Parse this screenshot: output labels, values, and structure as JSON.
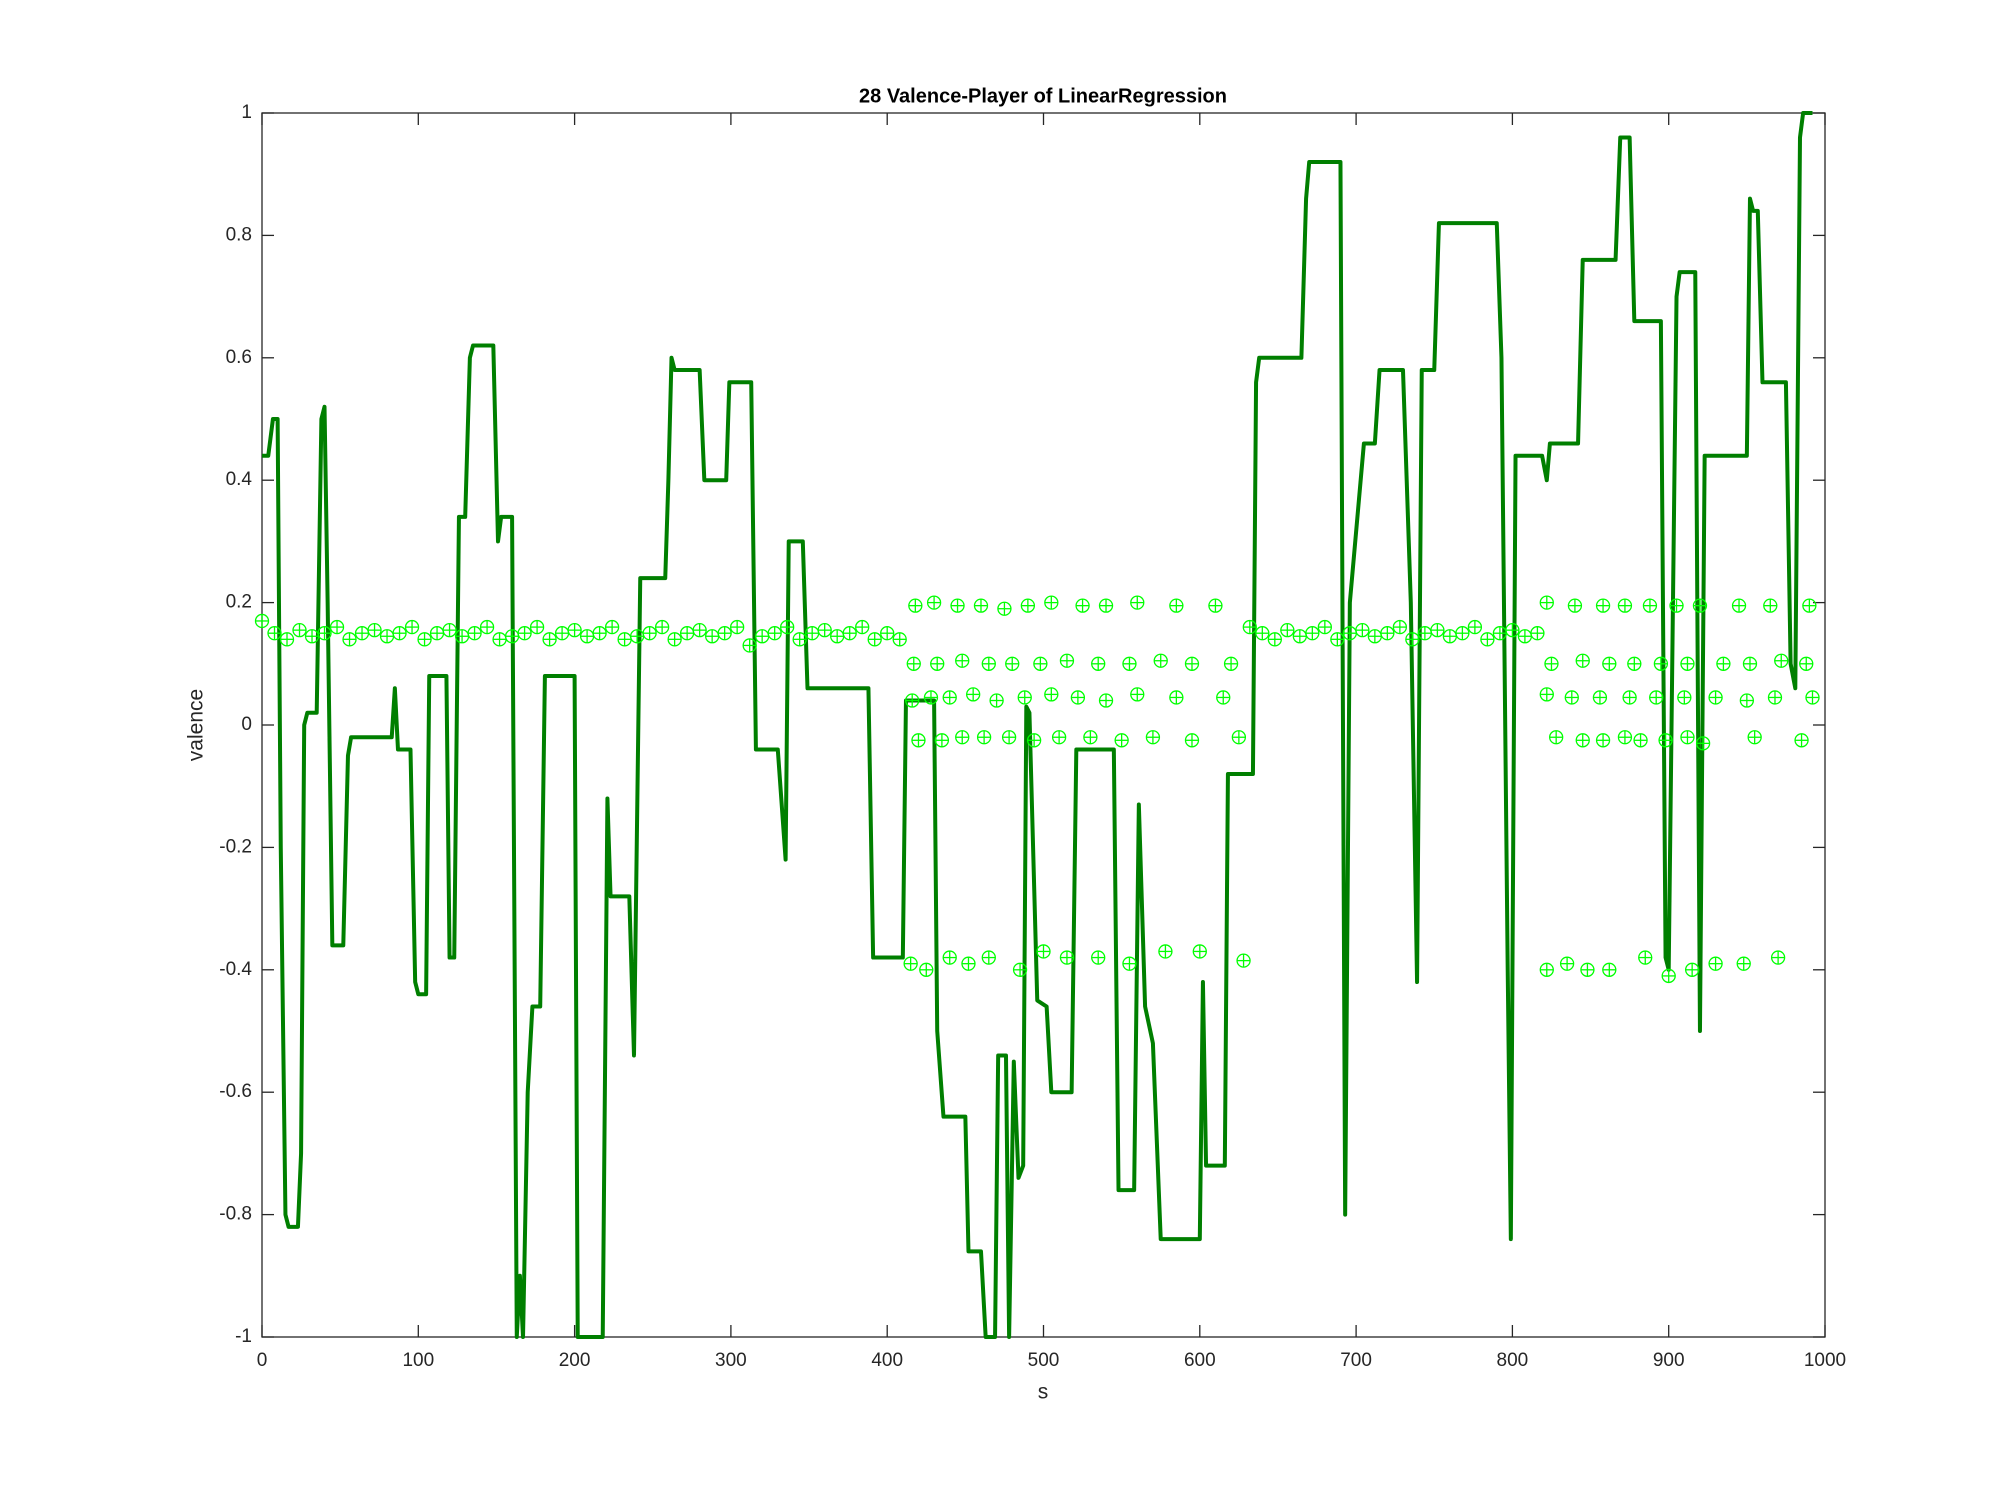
{
  "chart_data": {
    "type": "line",
    "title": "28 Valence-Player of LinearRegression",
    "xlabel": "s",
    "ylabel": "valence",
    "xlim": [
      0,
      1000
    ],
    "ylim": [
      -1,
      1
    ],
    "xticks": [
      0,
      100,
      200,
      300,
      400,
      500,
      600,
      700,
      800,
      900,
      1000
    ],
    "yticks": [
      -1,
      -0.8,
      -0.6,
      -0.4,
      -0.2,
      0,
      0.2,
      0.4,
      0.6,
      0.8,
      1
    ],
    "series": [
      {
        "type": "line",
        "color": "#007f00",
        "x": [
          0,
          4,
          7,
          10,
          12,
          15,
          17,
          23,
          25,
          27,
          29,
          35,
          38,
          40,
          42,
          45,
          52,
          55,
          57,
          83,
          85,
          87,
          95,
          98,
          100,
          105,
          107,
          118,
          120,
          123,
          126,
          130,
          133,
          135,
          148,
          151,
          153,
          160,
          163,
          165,
          167,
          170,
          173,
          178,
          181,
          200,
          202,
          218,
          221,
          223,
          235,
          238,
          242,
          258,
          260,
          262,
          264,
          280,
          283,
          297,
          299,
          313,
          316,
          330,
          335,
          337,
          346,
          349,
          388,
          391,
          410,
          412,
          430,
          432,
          436,
          450,
          452,
          460,
          463,
          469,
          471,
          476,
          478,
          481,
          484,
          487,
          489,
          491,
          496,
          502,
          505,
          518,
          521,
          545,
          548,
          558,
          561,
          565,
          570,
          575,
          600,
          602,
          604,
          616,
          618,
          634,
          636,
          638,
          665,
          668,
          670,
          690,
          693,
          696,
          705,
          712,
          715,
          730,
          735,
          739,
          742,
          750,
          753,
          790,
          793,
          797,
          799,
          802,
          819,
          822,
          824,
          842,
          845,
          866,
          869,
          875,
          878,
          895,
          898,
          900,
          905,
          907,
          917,
          920,
          923,
          950,
          952,
          954,
          957,
          960,
          975,
          978,
          981,
          984,
          986,
          992
        ],
        "values": [
          0.44,
          0.44,
          0.5,
          0.5,
          -0.2,
          -0.8,
          -0.82,
          -0.82,
          -0.7,
          0,
          0.02,
          0.02,
          0.5,
          0.52,
          0.2,
          -0.36,
          -0.36,
          -0.05,
          -0.02,
          -0.02,
          0.06,
          -0.04,
          -0.04,
          -0.42,
          -0.44,
          -0.44,
          0.08,
          0.08,
          -0.38,
          -0.38,
          0.34,
          0.34,
          0.6,
          0.62,
          0.62,
          0.3,
          0.34,
          0.34,
          -1,
          -0.9,
          -1,
          -0.6,
          -0.46,
          -0.46,
          0.08,
          0.08,
          -1,
          -1,
          -0.12,
          -0.28,
          -0.28,
          -0.54,
          0.24,
          0.24,
          0.4,
          0.6,
          0.58,
          0.58,
          0.4,
          0.4,
          0.56,
          0.56,
          -0.04,
          -0.04,
          -0.22,
          0.3,
          0.3,
          0.06,
          0.06,
          -0.38,
          -0.38,
          0.04,
          0.04,
          -0.5,
          -0.64,
          -0.64,
          -0.86,
          -0.86,
          -1,
          -1,
          -0.54,
          -0.54,
          -1,
          -0.55,
          -0.74,
          -0.72,
          0.03,
          0.02,
          -0.45,
          -0.46,
          -0.6,
          -0.6,
          -0.04,
          -0.04,
          -0.76,
          -0.76,
          -0.13,
          -0.46,
          -0.52,
          -0.84,
          -0.84,
          -0.42,
          -0.72,
          -0.72,
          -0.08,
          -0.08,
          0.56,
          0.6,
          0.6,
          0.86,
          0.92,
          0.92,
          -0.8,
          0.2,
          0.46,
          0.46,
          0.58,
          0.58,
          0.2,
          -0.42,
          0.58,
          0.58,
          0.82,
          0.82,
          0.6,
          -0.4,
          -0.84,
          0.44,
          0.44,
          0.4,
          0.46,
          0.46,
          0.76,
          0.76,
          0.96,
          0.96,
          0.66,
          0.66,
          -0.38,
          -0.4,
          0.7,
          0.74,
          0.74,
          -0.5,
          0.44,
          0.44,
          0.86,
          0.84,
          0.84,
          0.56,
          0.56,
          0.1,
          0.06,
          0.96,
          1,
          1
        ]
      },
      {
        "type": "scatter",
        "color": "#00ff00",
        "x": [
          0,
          8,
          16,
          24,
          32,
          40,
          48,
          56,
          64,
          72,
          80,
          88,
          96,
          104,
          112,
          120,
          128,
          136,
          144,
          152,
          160,
          168,
          176,
          184,
          192,
          200,
          208,
          216,
          224,
          232,
          240,
          248,
          256,
          264,
          272,
          280,
          288,
          296,
          304,
          312,
          320,
          328,
          336,
          344,
          352,
          360,
          368,
          376,
          384,
          392,
          400,
          408,
          418,
          430,
          445,
          460,
          475,
          490,
          505,
          525,
          540,
          560,
          585,
          610,
          417,
          432,
          448,
          465,
          480,
          498,
          515,
          535,
          555,
          575,
          595,
          620,
          416,
          428,
          440,
          455,
          470,
          488,
          505,
          522,
          540,
          560,
          585,
          615,
          420,
          435,
          448,
          462,
          478,
          494,
          510,
          530,
          550,
          570,
          595,
          625,
          415,
          425,
          440,
          452,
          465,
          485,
          500,
          515,
          535,
          555,
          578,
          600,
          628,
          632,
          640,
          648,
          656,
          664,
          672,
          680,
          688,
          696,
          704,
          712,
          720,
          728,
          736,
          744,
          752,
          760,
          768,
          776,
          784,
          792,
          800,
          808,
          816,
          822,
          840,
          858,
          872,
          888,
          905,
          920,
          945,
          965,
          990,
          825,
          845,
          862,
          878,
          895,
          912,
          935,
          952,
          972,
          988,
          822,
          838,
          856,
          875,
          892,
          910,
          930,
          950,
          968,
          992,
          828,
          845,
          858,
          872,
          882,
          898,
          912,
          922,
          955,
          985,
          822,
          835,
          848,
          862,
          885,
          900,
          915,
          930,
          948,
          970
        ],
        "values": [
          0.17,
          0.15,
          0.14,
          0.155,
          0.145,
          0.15,
          0.16,
          0.14,
          0.15,
          0.155,
          0.145,
          0.15,
          0.16,
          0.14,
          0.15,
          0.155,
          0.145,
          0.15,
          0.16,
          0.14,
          0.145,
          0.15,
          0.16,
          0.14,
          0.15,
          0.155,
          0.145,
          0.15,
          0.16,
          0.14,
          0.145,
          0.15,
          0.16,
          0.14,
          0.15,
          0.155,
          0.145,
          0.15,
          0.16,
          0.13,
          0.145,
          0.15,
          0.16,
          0.14,
          0.15,
          0.155,
          0.145,
          0.15,
          0.16,
          0.14,
          0.15,
          0.14,
          0.195,
          0.2,
          0.195,
          0.195,
          0.19,
          0.195,
          0.2,
          0.195,
          0.195,
          0.2,
          0.195,
          0.195,
          0.1,
          0.1,
          0.105,
          0.1,
          0.1,
          0.1,
          0.105,
          0.1,
          0.1,
          0.105,
          0.1,
          0.1,
          0.04,
          0.045,
          0.045,
          0.05,
          0.04,
          0.045,
          0.05,
          0.045,
          0.04,
          0.05,
          0.045,
          0.045,
          -0.025,
          -0.025,
          -0.02,
          -0.02,
          -0.02,
          -0.025,
          -0.02,
          -0.02,
          -0.025,
          -0.02,
          -0.025,
          -0.02,
          -0.39,
          -0.4,
          -0.38,
          -0.39,
          -0.38,
          -0.4,
          -0.37,
          -0.38,
          -0.38,
          -0.39,
          -0.37,
          -0.37,
          -0.385,
          0.16,
          0.15,
          0.14,
          0.155,
          0.145,
          0.15,
          0.16,
          0.14,
          0.15,
          0.155,
          0.145,
          0.15,
          0.16,
          0.14,
          0.15,
          0.155,
          0.145,
          0.15,
          0.16,
          0.14,
          0.15,
          0.155,
          0.145,
          0.15,
          0.2,
          0.195,
          0.195,
          0.195,
          0.195,
          0.195,
          0.195,
          0.195,
          0.195,
          0.195,
          0.1,
          0.105,
          0.1,
          0.1,
          0.1,
          0.1,
          0.1,
          0.1,
          0.105,
          0.1,
          0.05,
          0.045,
          0.045,
          0.045,
          0.045,
          0.045,
          0.045,
          0.04,
          0.045,
          0.045,
          -0.02,
          -0.025,
          -0.025,
          -0.02,
          -0.025,
          -0.025,
          -0.02,
          -0.03,
          -0.02,
          -0.025,
          -0.4,
          -0.39,
          -0.4,
          -0.4,
          -0.38,
          -0.41,
          -0.4,
          -0.39,
          -0.39,
          -0.38
        ]
      }
    ]
  }
}
